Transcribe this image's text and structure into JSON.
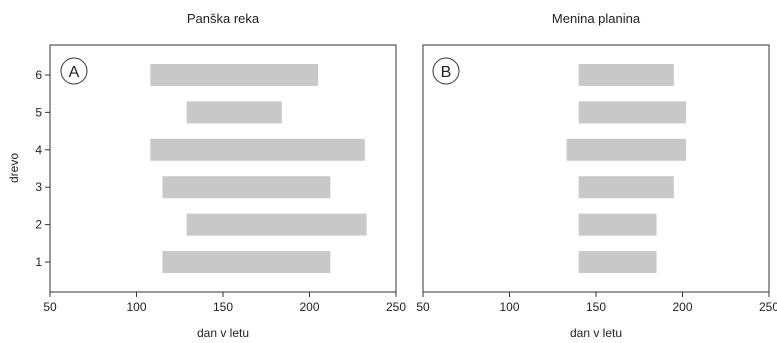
{
  "chart_data": [
    {
      "type": "range-bar",
      "panel_label": "A",
      "title": "Panška reka",
      "xlabel": "dan v letu",
      "ylabel": "drevo",
      "xlim": [
        50,
        250
      ],
      "ylim": [
        0.2,
        6.8
      ],
      "xticks": [
        "50",
        "100",
        "150",
        "200",
        "250"
      ],
      "yticks": [
        "1",
        "2",
        "3",
        "4",
        "5",
        "6"
      ],
      "bars": [
        {
          "y": 1,
          "start": 115,
          "end": 212
        },
        {
          "y": 2,
          "start": 129,
          "end": 233
        },
        {
          "y": 3,
          "start": 115,
          "end": 212
        },
        {
          "y": 4,
          "start": 108,
          "end": 232
        },
        {
          "y": 5,
          "start": 129,
          "end": 184
        },
        {
          "y": 6,
          "start": 108,
          "end": 205
        }
      ],
      "bar_color": "#c8c8c8",
      "grid": false
    },
    {
      "type": "range-bar",
      "panel_label": "B",
      "title": "Menina planina",
      "xlabel": "dan v letu",
      "ylabel": "",
      "xlim": [
        50,
        250
      ],
      "ylim": [
        0.2,
        6.8
      ],
      "xticks": [
        "50",
        "100",
        "150",
        "200",
        "250"
      ],
      "yticks": [],
      "bars": [
        {
          "y": 1,
          "start": 140,
          "end": 185
        },
        {
          "y": 2,
          "start": 140,
          "end": 185
        },
        {
          "y": 3,
          "start": 140,
          "end": 195
        },
        {
          "y": 4,
          "start": 133,
          "end": 202
        },
        {
          "y": 5,
          "start": 140,
          "end": 202
        },
        {
          "y": 6,
          "start": 140,
          "end": 195
        }
      ],
      "bar_color": "#c8c8c8",
      "grid": false
    }
  ]
}
